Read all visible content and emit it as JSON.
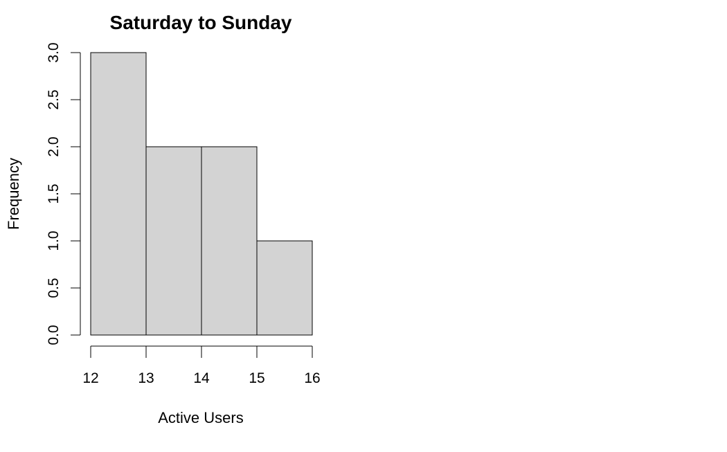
{
  "chart_data": {
    "type": "bar",
    "title": "Saturday to Sunday",
    "xlabel": "Active Users",
    "ylabel": "Frequency",
    "bins": [
      {
        "start": 12,
        "end": 13,
        "count": 3
      },
      {
        "start": 13,
        "end": 14,
        "count": 2
      },
      {
        "start": 14,
        "end": 15,
        "count": 2
      },
      {
        "start": 15,
        "end": 16,
        "count": 1
      }
    ],
    "xlim": [
      12,
      16
    ],
    "ylim": [
      0,
      3
    ],
    "x_ticks": [
      "12",
      "13",
      "14",
      "15",
      "16"
    ],
    "y_ticks": [
      "0.0",
      "0.5",
      "1.0",
      "1.5",
      "2.0",
      "2.5",
      "3.0"
    ],
    "bar_color": "#d3d3d3",
    "grid": false,
    "legend": "none"
  }
}
